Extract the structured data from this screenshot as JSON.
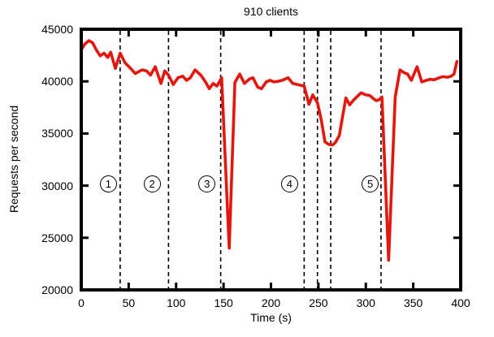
{
  "page": {
    "background": "#ffffff"
  },
  "chart_data": {
    "type": "line",
    "title": "910 clients",
    "xlabel": "Time (s)",
    "ylabel": "Requests per second",
    "xlim": [
      0,
      400
    ],
    "ylim": [
      20000,
      45000
    ],
    "x_ticks": [
      0,
      50,
      100,
      150,
      200,
      250,
      300,
      350,
      400
    ],
    "y_ticks": [
      20000,
      25000,
      30000,
      35000,
      40000,
      45000
    ],
    "grid": false,
    "legend": "none",
    "axis_color": "#000000",
    "line_color": "#e4170e",
    "series": [
      {
        "name": "requests-per-second",
        "points": [
          [
            0,
            43050
          ],
          [
            4,
            43600
          ],
          [
            8,
            43900
          ],
          [
            12,
            43700
          ],
          [
            16,
            43000
          ],
          [
            20,
            42450
          ],
          [
            24,
            42700
          ],
          [
            28,
            42300
          ],
          [
            31,
            42800
          ],
          [
            36,
            41250
          ],
          [
            41,
            42700
          ],
          [
            46,
            41800
          ],
          [
            52,
            41250
          ],
          [
            57,
            40750
          ],
          [
            60,
            40900
          ],
          [
            64,
            41100
          ],
          [
            69,
            41000
          ],
          [
            73,
            40600
          ],
          [
            78,
            41400
          ],
          [
            84,
            39800
          ],
          [
            88,
            41000
          ],
          [
            92,
            40600
          ],
          [
            97,
            39700
          ],
          [
            102,
            40350
          ],
          [
            107,
            40500
          ],
          [
            111,
            40100
          ],
          [
            115,
            40350
          ],
          [
            120,
            41100
          ],
          [
            126,
            40600
          ],
          [
            131,
            39950
          ],
          [
            135,
            39300
          ],
          [
            139,
            39800
          ],
          [
            143,
            39550
          ],
          [
            148,
            40350
          ],
          [
            156,
            24000
          ],
          [
            162,
            39900
          ],
          [
            167,
            40700
          ],
          [
            172,
            39800
          ],
          [
            177,
            40200
          ],
          [
            181,
            40350
          ],
          [
            186,
            39450
          ],
          [
            190,
            39300
          ],
          [
            195,
            39950
          ],
          [
            199,
            40100
          ],
          [
            203,
            39950
          ],
          [
            207,
            40000
          ],
          [
            212,
            40100
          ],
          [
            218,
            40350
          ],
          [
            223,
            39800
          ],
          [
            228,
            39700
          ],
          [
            235,
            39550
          ],
          [
            240,
            37800
          ],
          [
            244,
            38700
          ],
          [
            249,
            37950
          ],
          [
            253,
            36300
          ],
          [
            257,
            34200
          ],
          [
            261,
            33950
          ],
          [
            265,
            33900
          ],
          [
            268,
            34150
          ],
          [
            272,
            34800
          ],
          [
            275,
            36400
          ],
          [
            279,
            38400
          ],
          [
            283,
            37750
          ],
          [
            287,
            38200
          ],
          [
            291,
            38550
          ],
          [
            295,
            38900
          ],
          [
            300,
            38700
          ],
          [
            304,
            38650
          ],
          [
            308,
            38350
          ],
          [
            311,
            38150
          ],
          [
            314,
            38250
          ],
          [
            317,
            38500
          ],
          [
            324,
            22850
          ],
          [
            331,
            38500
          ],
          [
            336,
            41100
          ],
          [
            340,
            40850
          ],
          [
            344,
            40700
          ],
          [
            348,
            40100
          ],
          [
            354,
            41400
          ],
          [
            359,
            39950
          ],
          [
            364,
            40100
          ],
          [
            368,
            40200
          ],
          [
            372,
            40150
          ],
          [
            376,
            40300
          ],
          [
            381,
            40450
          ],
          [
            386,
            40400
          ],
          [
            390,
            40500
          ],
          [
            393,
            40700
          ],
          [
            396,
            41900
          ]
        ]
      }
    ],
    "event_lines": {
      "style": "dashed",
      "color": "#000000",
      "x_values": [
        41,
        92,
        147,
        235,
        249,
        263,
        316
      ]
    },
    "phase_markers": [
      {
        "label": "1",
        "x": 29,
        "y": 30100
      },
      {
        "label": "2",
        "x": 75,
        "y": 30100
      },
      {
        "label": "3",
        "x": 133,
        "y": 30100
      },
      {
        "label": "4",
        "x": 220,
        "y": 30100
      },
      {
        "label": "5",
        "x": 305,
        "y": 30100
      }
    ]
  }
}
